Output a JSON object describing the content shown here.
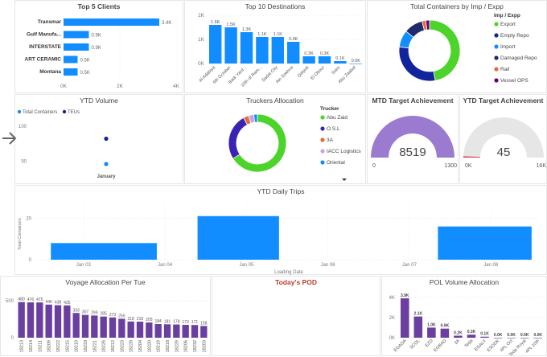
{
  "colors": {
    "blue": "#118DFF",
    "purple": "#6B3FA0",
    "lavender": "#9B7BD0",
    "gray": "#E6E6E6",
    "red": "#D64550",
    "navy": "#12239E",
    "green": "#4CD42B",
    "orange": "#E66C37"
  },
  "charts": [
    {
      "title": "Top 5 Clients",
      "chart_data": {
        "type": "bar",
        "orientation": "horizontal",
        "categories": [
          "Transmar",
          "Gulf Manufa...",
          "INTERSTATE",
          "ART CERAMIC",
          "Montana"
        ],
        "values": [
          3.4,
          0.9,
          0.9,
          0.5,
          0.5
        ],
        "value_labels": [
          "3.4K",
          "0.9K",
          "0.9K",
          "0.5K",
          "0.5K"
        ],
        "xticks": [
          "0K",
          "2K",
          "4K"
        ],
        "xlim": [
          0,
          4
        ]
      }
    },
    {
      "title": "Top 10 Destinations",
      "chart_data": {
        "type": "bar",
        "categories": [
          "Al Adabiya",
          "6th October",
          "Badr Yard...",
          "10th of Ram...",
          "Sadat City",
          "Ain Sokhna",
          "Qalyub",
          "El Obour",
          "Suez",
          "Abu Zaabal"
        ],
        "values": [
          1.6,
          1.5,
          1.3,
          1.1,
          1.1,
          0.9,
          0.3,
          0.3,
          0.1,
          0.0
        ],
        "value_labels": [
          "1.6K",
          "1.5K",
          "1.3K",
          "1.1K",
          "1.1K",
          "0.9K",
          "0.3K",
          "0.3K",
          "0.1K",
          "0.0K"
        ],
        "yticks": [
          "0K",
          "1K",
          "2K"
        ],
        "ylim": [
          0,
          2
        ]
      }
    },
    {
      "title": "Total Containers by Imp / Expp",
      "legend_title": "Imp / Expp",
      "chart_data": {
        "type": "pie",
        "donut": true,
        "categories": [
          "Export",
          "Empty Repo",
          "Import",
          "Damaged Repo",
          "Rail",
          "Vessel OPS"
        ],
        "values": [
          47,
          30,
          9,
          10,
          2,
          2
        ],
        "colors": [
          "#4CD42B",
          "#12239E",
          "#118DFF",
          "#1F2A6B",
          "#E66C37",
          "#6B007B"
        ]
      }
    },
    {
      "title": "YTD Volume",
      "chart_data": {
        "type": "scatter",
        "series": [
          {
            "name": "Total Containers",
            "color": "#118DFF",
            "values": [
              46
            ]
          },
          {
            "name": "TEUs",
            "color": "#12239E",
            "values": [
              82
            ]
          }
        ],
        "categories": [
          "January"
        ],
        "yticks": [
          "50",
          "100"
        ],
        "ylim": [
          30,
          110
        ]
      }
    },
    {
      "title": "Truckers Allocation",
      "legend_title": "Trucker",
      "chart_data": {
        "type": "pie",
        "donut": true,
        "categories": [
          "Abu Zaid",
          "O.S.L",
          "3A",
          "IACC Logistics",
          "Oriental"
        ],
        "values": [
          66,
          26,
          3,
          3,
          2
        ],
        "colors": [
          "#4CD42B",
          "#3A22B5",
          "#E66C37",
          "#C6A4E8",
          "#118DFF"
        ]
      }
    },
    {
      "title": "MTD Target Achievement",
      "chart_data": {
        "type": "gauge",
        "value": 8519,
        "value_label": "8519",
        "min_label": "0",
        "max_label": "1300",
        "fill_fraction": 1
      }
    },
    {
      "title": "YTD Target Achievement",
      "chart_data": {
        "type": "gauge",
        "value": 45,
        "value_label": "45",
        "min_label": "0K",
        "max_label": "16K",
        "fill_fraction": 0.01
      }
    },
    {
      "title": "YTD Daily Trips",
      "chart_data": {
        "type": "bar",
        "ylabel": "Total Containers",
        "xlabel": "Loading Date",
        "xticks": [
          "Jan 03",
          "Jan 04",
          "Jan 05",
          "Jan 06",
          "Jan 07",
          "Jan 08"
        ],
        "yticks": [
          "0",
          "20"
        ],
        "ylim": [
          0,
          24
        ],
        "bars": [
          {
            "start": 2.6,
            "end": 3.9,
            "value": 8
          },
          {
            "start": 4.4,
            "end": 5.4,
            "value": 21
          },
          {
            "start": 7.35,
            "end": 8.5,
            "value": 16
          }
        ],
        "xlim": [
          2.4,
          8.6
        ]
      }
    },
    {
      "title": "Voyage Allocation Per Tue",
      "chart_data": {
        "type": "bar",
        "categories": [
          "18213",
          "18214",
          "18211",
          "18209",
          "18222",
          "18215",
          "18210",
          "18233",
          "18221",
          "18226",
          "18212",
          "18223",
          "18228",
          "18204",
          "18220",
          "18219",
          "18218",
          "18229",
          "18206",
          "18232",
          "18203"
        ],
        "values": [
          480,
          476,
          475,
          446,
          438,
          435,
          333,
          307,
          299,
          285,
          273,
          255,
          218,
          216,
          205,
          184,
          181,
          178,
          173,
          171,
          158
        ],
        "yticks": [
          "0",
          "500"
        ],
        "ylim": [
          0,
          520
        ]
      }
    },
    {
      "title": "Today's POD",
      "chart_data": {
        "type": "bar",
        "categories": [],
        "values": []
      }
    },
    {
      "title": "POL Volume Allocation",
      "chart_data": {
        "type": "bar",
        "categories": [
          "EGADA",
          "SCDL",
          "EZD",
          "EGBAD",
          "3A",
          "Teda",
          "EGALY",
          "ESODK",
          "4PL Oct",
          "Teda Royal",
          "4PL 10th"
        ],
        "values": [
          3.9,
          2.1,
          1.0,
          0.9,
          0.2,
          0.3,
          0.1,
          0.0,
          0.0,
          0.0,
          0.0
        ],
        "value_labels": [
          "3.9K",
          "2.1K",
          "1.0K",
          "0.9K",
          "0.2K",
          "0.3K",
          "0.1K",
          "0.0K",
          "0.0K",
          "0.0K",
          "0.0K"
        ],
        "yticks": [
          "0K",
          "2K",
          "4K"
        ],
        "ylim": [
          0,
          4.3
        ]
      }
    }
  ]
}
